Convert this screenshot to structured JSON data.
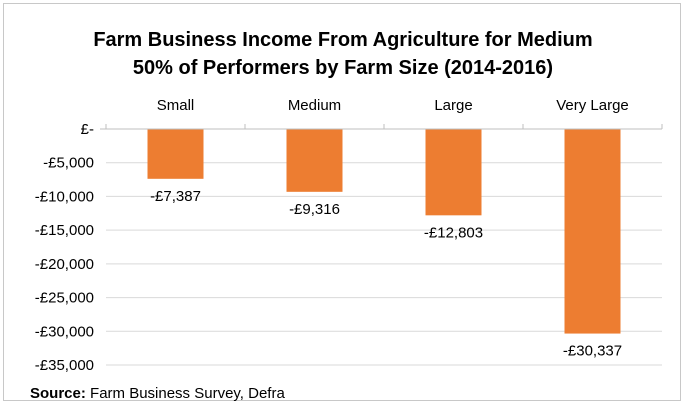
{
  "chart_data": {
    "type": "bar",
    "title_line1": "Farm Business Income From Agriculture for Medium",
    "title_line2": "50% of Performers by Farm Size (2014-2016)",
    "categories": [
      "Small",
      "Medium",
      "Large",
      "Very Large"
    ],
    "values": [
      -7387,
      -9316,
      -12803,
      -30337
    ],
    "data_labels": [
      "-£7,387",
      "-£9,316",
      "-£12,803",
      "-£30,337"
    ],
    "ylim": [
      -35000,
      0
    ],
    "yticks": [
      0,
      -5000,
      -10000,
      -15000,
      -20000,
      -25000,
      -30000,
      -35000
    ],
    "ytick_labels": [
      "£-",
      "-£5,000",
      "-£10,000",
      "-£15,000",
      "-£20,000",
      "-£25,000",
      "-£30,000",
      "-£35,000"
    ],
    "bar_color": "#ED7D31",
    "grid": true,
    "category_labels_position": "top"
  },
  "footer": {
    "source_label": "Source:",
    "source_text": "Farm Business Survey, Defra"
  }
}
